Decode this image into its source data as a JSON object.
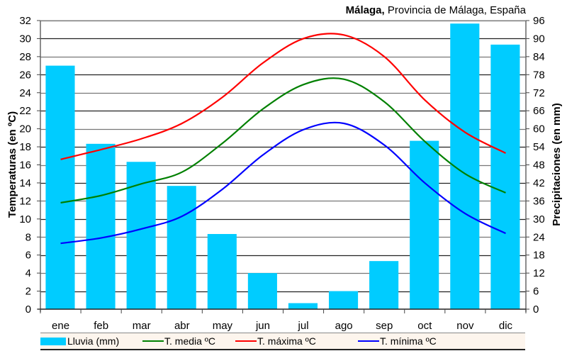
{
  "title": {
    "bold_part": "Málaga,",
    "rest": " Provincia de Málaga, España"
  },
  "chart_data": {
    "type": "bar+line",
    "title": "Málaga, Provincia de Málaga, España",
    "categories": [
      "ene",
      "feb",
      "mar",
      "abr",
      "may",
      "jun",
      "jul",
      "ago",
      "sep",
      "oct",
      "nov",
      "dic"
    ],
    "ylabel_left": "Temperaturas (en ºC)",
    "ylabel_right": "Precipitaciones (en mm)",
    "ylim_left": [
      0,
      32
    ],
    "yticks_left": [
      0,
      2,
      4,
      6,
      8,
      10,
      12,
      14,
      16,
      18,
      20,
      22,
      24,
      26,
      28,
      30,
      32
    ],
    "ylim_right": [
      0,
      96
    ],
    "yticks_right": [
      0,
      6,
      12,
      18,
      24,
      30,
      36,
      42,
      48,
      54,
      60,
      66,
      72,
      78,
      84,
      90,
      96
    ],
    "grid": true,
    "legend_position": "bottom",
    "series": [
      {
        "name": "Lluvia (mm)",
        "type": "bar",
        "axis": "right",
        "color": "#00ccff",
        "values": [
          81,
          55,
          49,
          41,
          25,
          12,
          2,
          6,
          16,
          56,
          95,
          88
        ]
      },
      {
        "name": "T. media ºC",
        "type": "line",
        "axis": "left",
        "color": "#008000",
        "values": [
          11.8,
          12.6,
          13.9,
          15.2,
          18.4,
          22.2,
          24.9,
          25.5,
          23.0,
          18.6,
          15.0,
          12.9
        ]
      },
      {
        "name": "T. máxima ºC",
        "type": "line",
        "axis": "left",
        "color": "#ff0000",
        "values": [
          16.6,
          17.7,
          18.9,
          20.6,
          23.5,
          27.3,
          30.0,
          30.4,
          28.0,
          23.2,
          19.6,
          17.3
        ]
      },
      {
        "name": "T. mínima ºC",
        "type": "line",
        "axis": "left",
        "color": "#0000ff",
        "values": [
          7.3,
          7.9,
          8.9,
          10.3,
          13.3,
          17.1,
          19.9,
          20.6,
          18.2,
          14.0,
          10.6,
          8.4
        ]
      }
    ]
  }
}
